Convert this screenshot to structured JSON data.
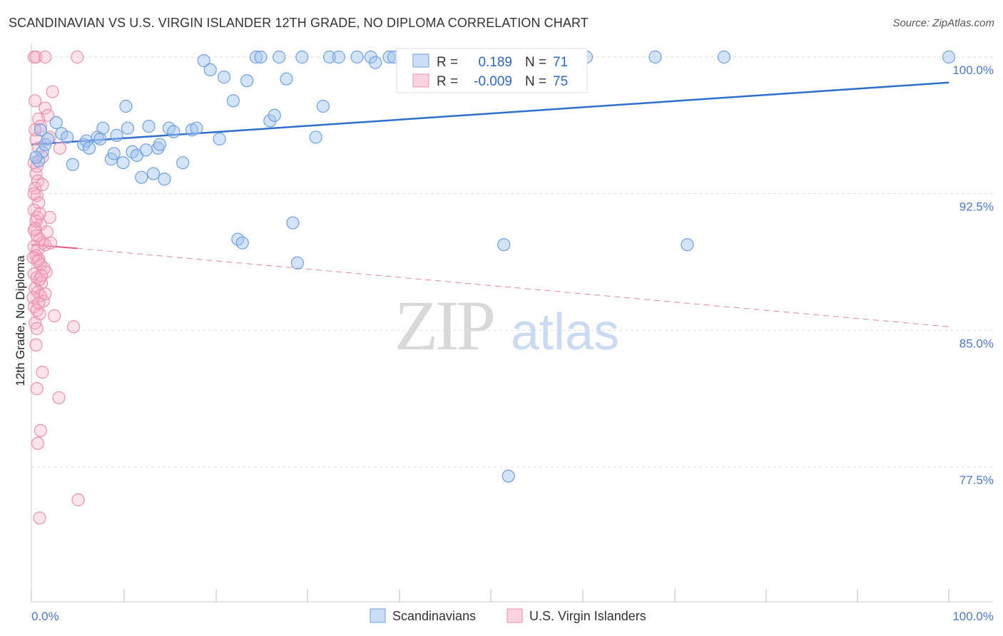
{
  "title": "SCANDINAVIAN VS U.S. VIRGIN ISLANDER 12TH GRADE, NO DIPLOMA CORRELATION CHART",
  "source": "Source: ZipAtlas.com",
  "watermark": {
    "zip": "ZIP",
    "atlas": "atlas"
  },
  "colors": {
    "blue": "#6f9fe0",
    "blue_fill": "rgba(160,195,240,0.45)",
    "blue_line": "#2f6fcc",
    "pink": "#ea8fae",
    "pink_fill": "rgba(245,175,200,0.35)",
    "pink_line": "#e0628e",
    "tick_label": "#4a78c8",
    "grid": "#dddddd"
  },
  "legend": {
    "rows": [
      {
        "r_label": "R =",
        "r_value": "0.189",
        "n_label": "N =",
        "n_value": "71"
      },
      {
        "r_label": "R =",
        "r_value": "-0.009",
        "n_label": "N =",
        "n_value": "75"
      }
    ]
  },
  "chart_data": {
    "type": "scatter",
    "title": "SCANDINAVIAN VS U.S. VIRGIN ISLANDER 12TH GRADE, NO DIPLOMA CORRELATION CHART",
    "xlabel": "",
    "ylabel": "12th Grade, No Diploma",
    "xlim": [
      0,
      100
    ],
    "ylim": [
      70.0,
      101.5
    ],
    "x_ticks_labels": [
      "0.0%",
      "100.0%"
    ],
    "y_ticks": [
      77.5,
      85.0,
      92.5,
      100.0
    ],
    "y_tick_labels": [
      "77.5%",
      "85.0%",
      "92.5%",
      "100.0%"
    ],
    "series": [
      {
        "name": "Scandinavians",
        "r": 0.189,
        "n": 71,
        "trend": {
          "x": [
            0,
            100
          ],
          "y": [
            95.2,
            98.6
          ],
          "style": "solid"
        },
        "points": [
          [
            0.8,
            94.3
          ],
          [
            1.0,
            96.0
          ],
          [
            1.2,
            94.8
          ],
          [
            1.5,
            95.2
          ],
          [
            1.8,
            95.5
          ],
          [
            2.7,
            96.4
          ],
          [
            3.3,
            95.8
          ],
          [
            3.9,
            95.6
          ],
          [
            4.5,
            94.1
          ],
          [
            5.7,
            95.2
          ],
          [
            6.0,
            95.4
          ],
          [
            6.3,
            95.0
          ],
          [
            7.2,
            95.6
          ],
          [
            7.5,
            95.5
          ],
          [
            7.8,
            96.1
          ],
          [
            8.7,
            94.4
          ],
          [
            9.0,
            94.7
          ],
          [
            9.3,
            95.7
          ],
          [
            10.0,
            94.2
          ],
          [
            10.3,
            97.3
          ],
          [
            10.5,
            96.1
          ],
          [
            11.0,
            94.8
          ],
          [
            11.5,
            94.6
          ],
          [
            12.0,
            93.4
          ],
          [
            12.5,
            94.9
          ],
          [
            12.8,
            96.2
          ],
          [
            13.3,
            93.6
          ],
          [
            13.8,
            95.0
          ],
          [
            14.0,
            95.2
          ],
          [
            14.5,
            93.3
          ],
          [
            15.0,
            96.1
          ],
          [
            15.5,
            95.9
          ],
          [
            16.5,
            94.2
          ],
          [
            17.5,
            96.0
          ],
          [
            18.0,
            96.1
          ],
          [
            18.8,
            99.8
          ],
          [
            19.5,
            99.3
          ],
          [
            20.5,
            95.5
          ],
          [
            21.0,
            98.9
          ],
          [
            22.0,
            97.6
          ],
          [
            22.5,
            90.0
          ],
          [
            23.0,
            89.8
          ],
          [
            23.5,
            98.7
          ],
          [
            24.5,
            100.0
          ],
          [
            25.0,
            100.0
          ],
          [
            26.0,
            96.5
          ],
          [
            26.5,
            96.8
          ],
          [
            27.0,
            100.0
          ],
          [
            27.8,
            98.8
          ],
          [
            28.5,
            90.9
          ],
          [
            29.0,
            88.7
          ],
          [
            29.5,
            100.0
          ],
          [
            31.0,
            95.6
          ],
          [
            31.8,
            97.3
          ],
          [
            32.5,
            100.0
          ],
          [
            33.5,
            100.0
          ],
          [
            35.5,
            100.0
          ],
          [
            37.0,
            100.0
          ],
          [
            37.5,
            99.7
          ],
          [
            39.0,
            100.0
          ],
          [
            39.5,
            100.0
          ],
          [
            41.0,
            100.0
          ],
          [
            47.0,
            100.0
          ],
          [
            51.5,
            89.7
          ],
          [
            52.0,
            77.0
          ],
          [
            60.5,
            100.0
          ],
          [
            68.0,
            100.0
          ],
          [
            71.5,
            89.7
          ],
          [
            75.5,
            100.0
          ],
          [
            100.0,
            100.0
          ],
          [
            0.5,
            94.5
          ]
        ]
      },
      {
        "name": "U.S. Virgin Islanders",
        "r": -0.009,
        "n": 75,
        "trend": {
          "x": [
            0,
            5
          ],
          "y": [
            89.7,
            89.5
          ],
          "style": "solid",
          "extended": {
            "x": [
              5,
              100
            ],
            "y": [
              89.5,
              85.2
            ],
            "style": "dashed"
          }
        },
        "points": [
          [
            0.3,
            100.0
          ],
          [
            0.5,
            100.0
          ],
          [
            1.5,
            100.0
          ],
          [
            5.0,
            100.0
          ],
          [
            0.4,
            97.6
          ],
          [
            0.8,
            96.6
          ],
          [
            1.0,
            96.2
          ],
          [
            1.5,
            97.2
          ],
          [
            2.3,
            98.1
          ],
          [
            0.5,
            95.5
          ],
          [
            0.8,
            95.0
          ],
          [
            1.2,
            94.5
          ],
          [
            2.0,
            95.6
          ],
          [
            3.1,
            95.0
          ],
          [
            0.3,
            94.2
          ],
          [
            0.5,
            93.6
          ],
          [
            0.7,
            93.2
          ],
          [
            0.4,
            92.8
          ],
          [
            0.6,
            92.4
          ],
          [
            0.8,
            92.0
          ],
          [
            0.3,
            91.6
          ],
          [
            0.6,
            91.2
          ],
          [
            1.0,
            90.8
          ],
          [
            2.0,
            91.2
          ],
          [
            0.4,
            90.6
          ],
          [
            0.6,
            90.2
          ],
          [
            0.9,
            90.0
          ],
          [
            1.2,
            89.8
          ],
          [
            0.3,
            89.6
          ],
          [
            0.7,
            89.4
          ],
          [
            1.5,
            89.7
          ],
          [
            2.1,
            89.8
          ],
          [
            0.5,
            89.1
          ],
          [
            0.8,
            88.9
          ],
          [
            1.0,
            88.6
          ],
          [
            1.4,
            88.4
          ],
          [
            0.3,
            88.1
          ],
          [
            0.6,
            87.9
          ],
          [
            1.1,
            87.6
          ],
          [
            1.6,
            88.2
          ],
          [
            0.4,
            87.3
          ],
          [
            0.7,
            87.1
          ],
          [
            1.0,
            86.9
          ],
          [
            1.3,
            86.6
          ],
          [
            0.3,
            86.3
          ],
          [
            0.6,
            86.1
          ],
          [
            0.9,
            85.9
          ],
          [
            2.5,
            85.8
          ],
          [
            0.4,
            85.4
          ],
          [
            0.6,
            85.1
          ],
          [
            4.6,
            85.2
          ],
          [
            0.5,
            84.2
          ],
          [
            1.2,
            82.7
          ],
          [
            0.6,
            81.8
          ],
          [
            3.0,
            81.3
          ],
          [
            1.0,
            79.5
          ],
          [
            0.7,
            78.8
          ],
          [
            5.1,
            75.7
          ],
          [
            0.9,
            74.7
          ],
          [
            0.3,
            90.5
          ],
          [
            0.5,
            91.0
          ],
          [
            1.7,
            90.4
          ],
          [
            0.2,
            89.0
          ],
          [
            0.9,
            87.8
          ],
          [
            1.5,
            87.0
          ],
          [
            0.2,
            86.8
          ],
          [
            0.8,
            86.5
          ],
          [
            0.3,
            92.5
          ],
          [
            1.2,
            93.0
          ],
          [
            0.6,
            94.0
          ],
          [
            1.8,
            96.8
          ],
          [
            0.4,
            96.0
          ],
          [
            0.9,
            91.4
          ],
          [
            1.1,
            88.0
          ],
          [
            0.7,
            88.8
          ]
        ]
      }
    ]
  },
  "bottom_legend": [
    {
      "label": "Scandinavians"
    },
    {
      "label": "U.S. Virgin Islanders"
    }
  ]
}
